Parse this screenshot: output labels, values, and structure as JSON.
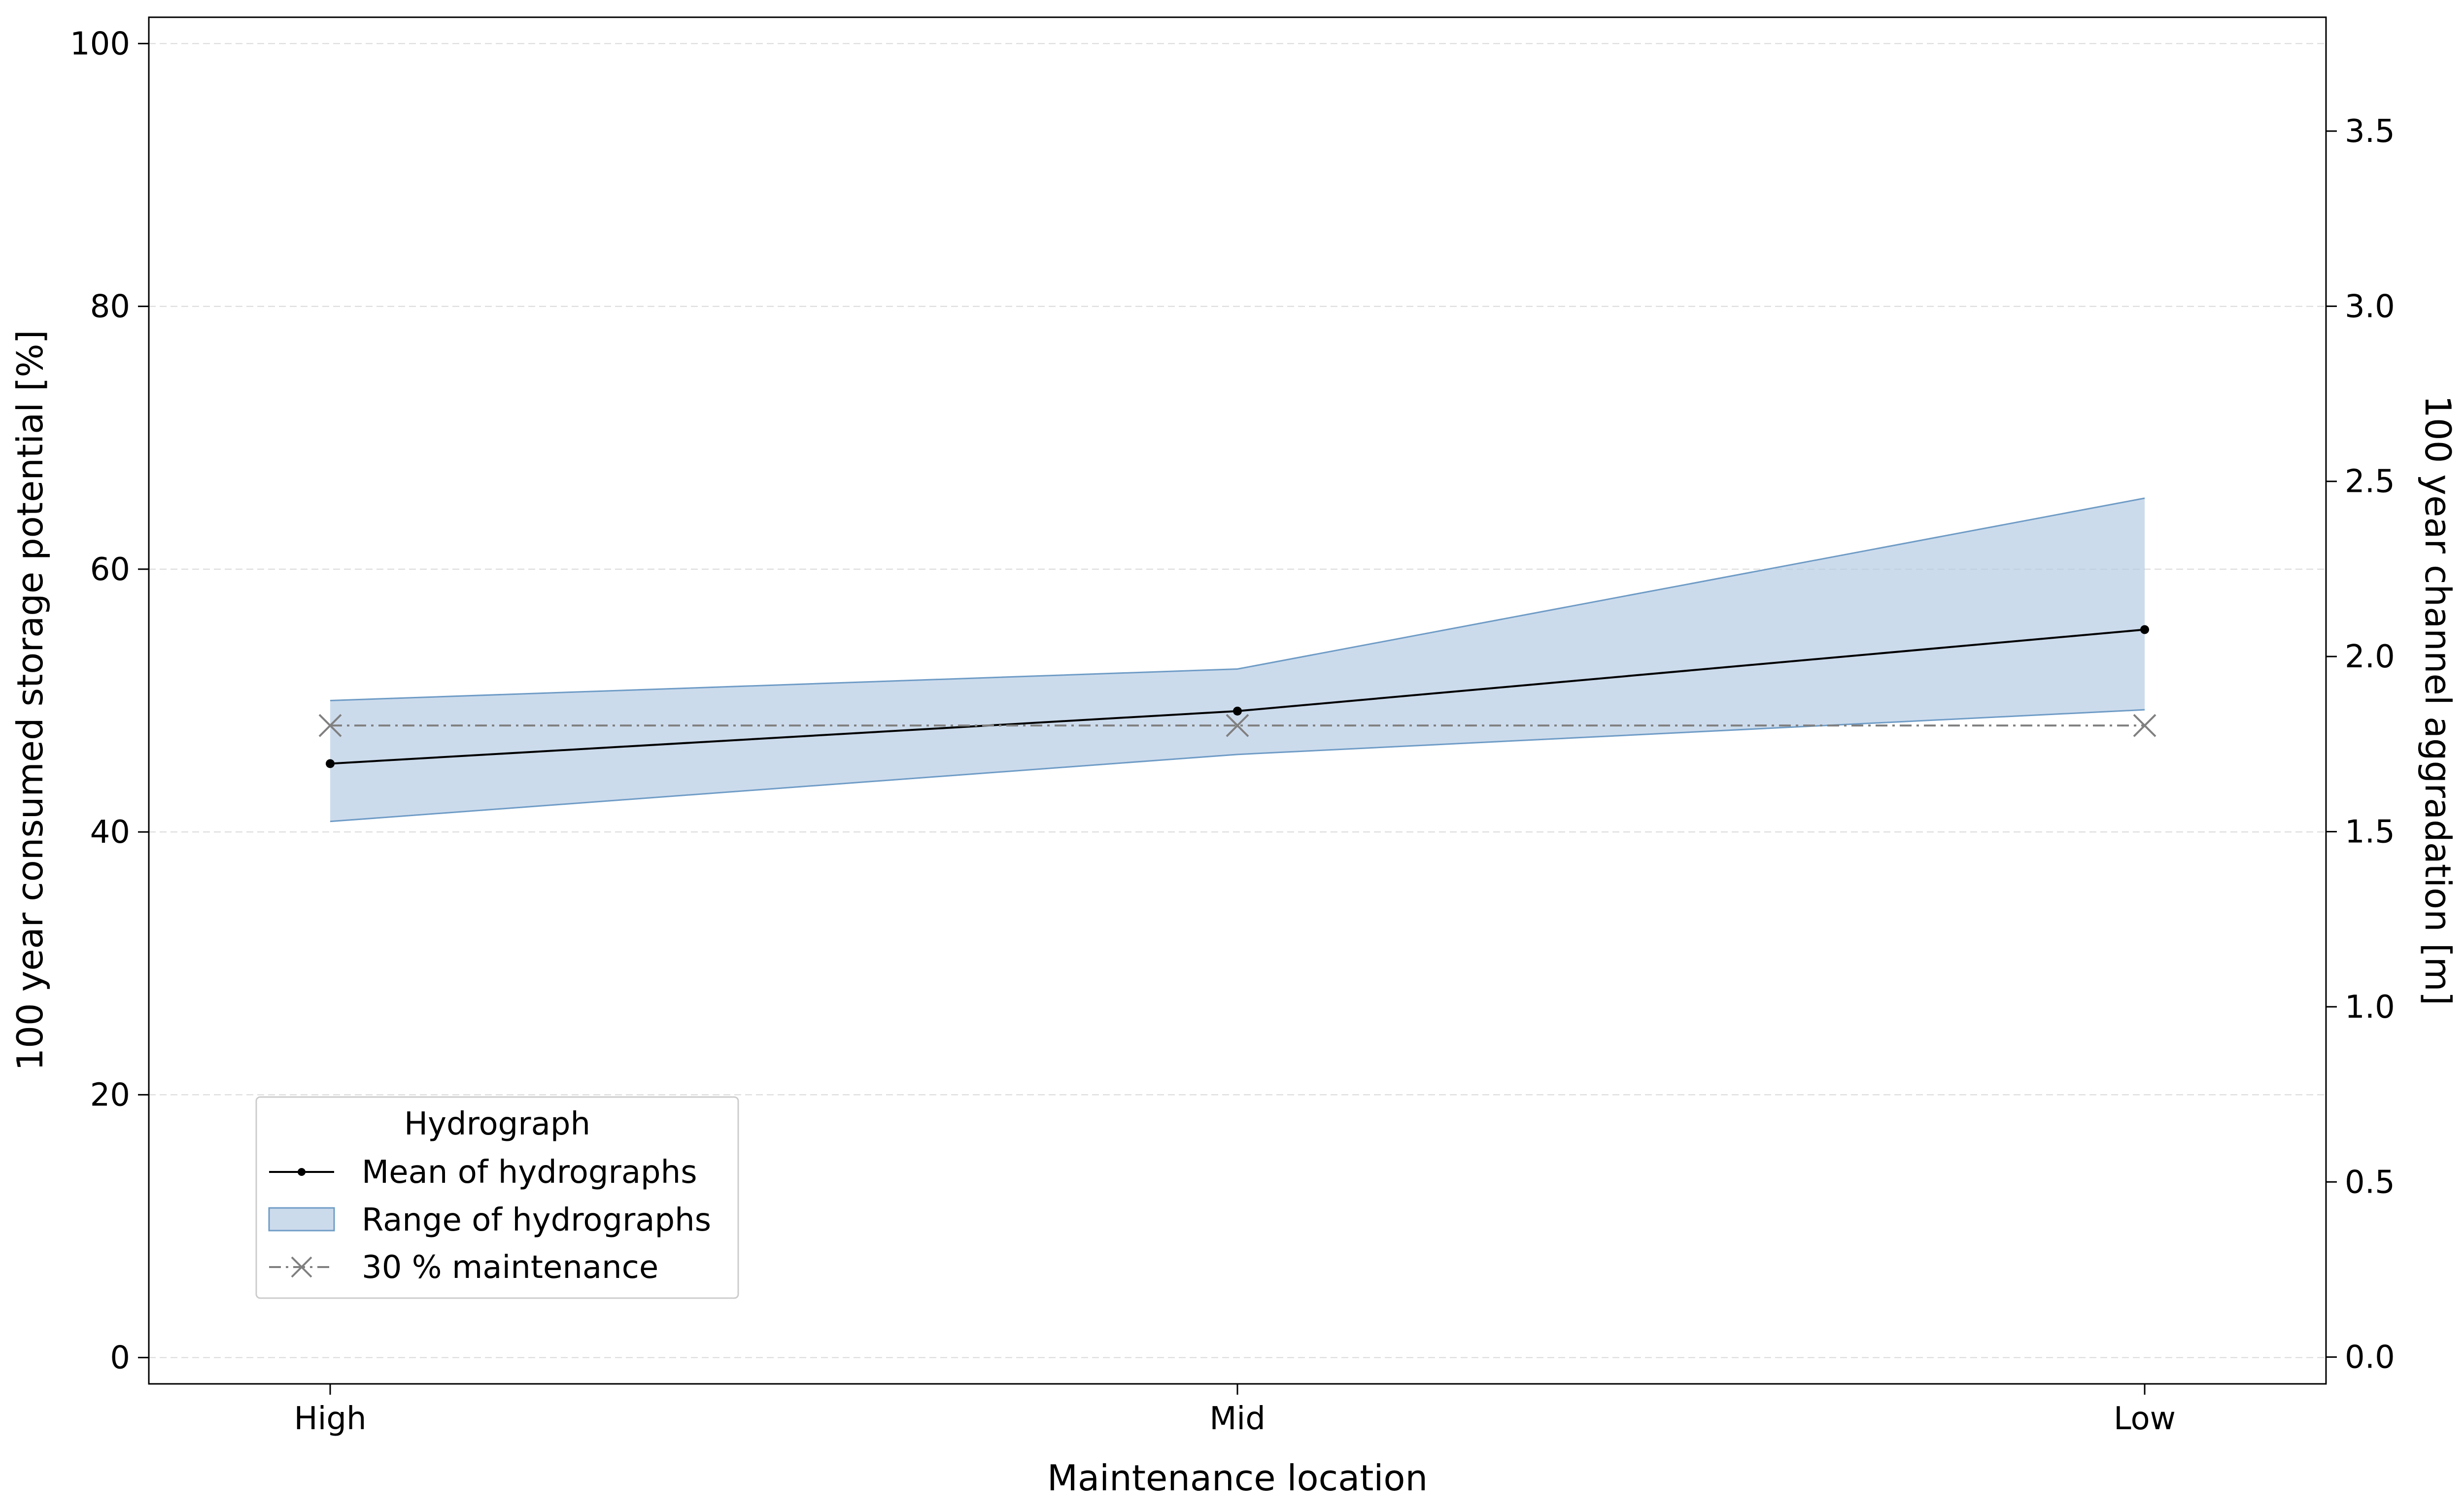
{
  "chart_data": {
    "type": "line",
    "categories": [
      "High",
      "Mid",
      "Low"
    ],
    "xlabel": "Maintenance location",
    "ylabel": "100 year consumed storage potential [%]",
    "ylabel_right": "100 year channel aggradation [m]",
    "ylim": [
      -2,
      102
    ],
    "ylim_right": [
      -0.0765,
      3.825
    ],
    "yticks": [
      "0",
      "20",
      "40",
      "60",
      "80",
      "100"
    ],
    "yticks_right": [
      "0.0",
      "0.5",
      "1.0",
      "1.5",
      "2.0",
      "2.5",
      "3.0",
      "3.5"
    ],
    "grid": "horizontal dashed",
    "series": [
      {
        "name": "Mean of hydrographs",
        "kind": "line",
        "values": [
          45.2,
          49.2,
          55.4
        ],
        "color": "#000000",
        "marker": "dot"
      },
      {
        "name": "Range of hydrographs",
        "kind": "band",
        "lower": [
          40.8,
          45.9,
          49.3
        ],
        "upper": [
          50.0,
          52.4,
          65.4
        ],
        "color": "#b0c8e2",
        "edge_color": "#6f9cc6"
      },
      {
        "name": "30 % maintenance",
        "kind": "line",
        "values": [
          48.1,
          48.1,
          48.1
        ],
        "color": "#808080",
        "marker": "x",
        "linestyle": "dashdot"
      }
    ],
    "legend": {
      "title": "Hydrograph",
      "position": "lower-left"
    }
  }
}
